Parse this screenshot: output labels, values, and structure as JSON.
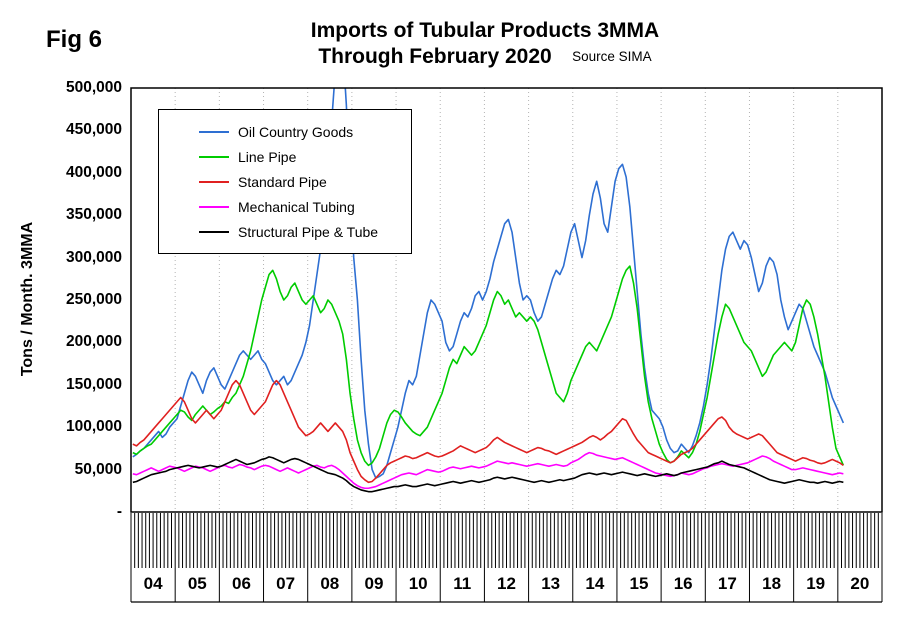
{
  "figure": {
    "fig_label": "Fig 6",
    "title_line1": "Imports of Tubular Products 3MMA",
    "title_line2": "Through February 2020",
    "source": "Source SIMA",
    "y_axis_title": "Tons / Month. 3MMA"
  },
  "chart_data": {
    "type": "line",
    "title": "Imports of Tubular Products 3MMA Through February 2020",
    "source": "Source SIMA",
    "ylabel": "Tons / Month. 3MMA",
    "ylim": [
      0,
      500000
    ],
    "y_tick_step": 50000,
    "y_tick_labels": [
      "-",
      "50,000",
      "100,000",
      "150,000",
      "200,000",
      "250,000",
      "300,000",
      "350,000",
      "400,000",
      "450,000",
      "500,000"
    ],
    "x_start": "2004-01",
    "x_end": "2020-02",
    "x_frequency": "monthly",
    "x_axis_span_years": 17,
    "x_tick_labels": [
      "04",
      "05",
      "06",
      "07",
      "08",
      "09",
      "10",
      "11",
      "12",
      "13",
      "14",
      "15",
      "16",
      "17",
      "18",
      "19",
      "20"
    ],
    "grid": "light dotted vertical gridlines at year boundaries; no horizontal gridlines",
    "legend_position": "upper-left-inside-boxed",
    "values_unit": "tons per month (3MMA), stored in thousands of tons",
    "unit_multiplier": 1000,
    "series": [
      {
        "name": "Oil Country Goods",
        "color": "#2E6FD2",
        "values_thousands": [
          65,
          68,
          72,
          75,
          80,
          85,
          90,
          95,
          88,
          92,
          100,
          105,
          110,
          125,
          140,
          155,
          165,
          160,
          150,
          140,
          155,
          165,
          170,
          160,
          150,
          145,
          155,
          165,
          175,
          185,
          190,
          185,
          180,
          185,
          190,
          180,
          175,
          165,
          155,
          150,
          155,
          160,
          150,
          155,
          165,
          175,
          185,
          200,
          220,
          250,
          280,
          310,
          350,
          400,
          460,
          520,
          560,
          550,
          480,
          380,
          300,
          250,
          180,
          120,
          80,
          50,
          40,
          42,
          45,
          55,
          70,
          85,
          100,
          120,
          140,
          155,
          150,
          160,
          185,
          210,
          235,
          250,
          245,
          235,
          225,
          200,
          190,
          195,
          210,
          225,
          235,
          230,
          240,
          255,
          260,
          250,
          260,
          275,
          295,
          310,
          325,
          340,
          345,
          330,
          300,
          270,
          250,
          255,
          250,
          235,
          225,
          230,
          245,
          260,
          275,
          285,
          280,
          290,
          310,
          330,
          340,
          320,
          300,
          320,
          350,
          375,
          390,
          370,
          340,
          330,
          360,
          390,
          405,
          410,
          395,
          360,
          310,
          260,
          210,
          170,
          140,
          120,
          115,
          110,
          100,
          85,
          75,
          70,
          72,
          80,
          75,
          70,
          78,
          90,
          105,
          125,
          150,
          180,
          215,
          250,
          285,
          310,
          325,
          330,
          320,
          310,
          320,
          315,
          300,
          280,
          260,
          270,
          290,
          300,
          295,
          280,
          250,
          230,
          215,
          225,
          235,
          245,
          240,
          225,
          210,
          195,
          185,
          175,
          165,
          150,
          135,
          125,
          115,
          105
        ]
      },
      {
        "name": "Line Pipe",
        "color": "#00CC00",
        "values_thousands": [
          70,
          68,
          72,
          75,
          78,
          80,
          85,
          90,
          95,
          100,
          105,
          110,
          115,
          120,
          118,
          112,
          108,
          115,
          120,
          125,
          120,
          115,
          118,
          122,
          125,
          130,
          128,
          135,
          140,
          150,
          160,
          175,
          190,
          210,
          230,
          250,
          265,
          280,
          285,
          275,
          260,
          250,
          255,
          265,
          270,
          260,
          250,
          245,
          250,
          255,
          245,
          235,
          240,
          250,
          245,
          235,
          225,
          210,
          180,
          140,
          110,
          85,
          70,
          60,
          55,
          58,
          65,
          75,
          90,
          105,
          115,
          120,
          118,
          112,
          105,
          100,
          95,
          92,
          90,
          95,
          100,
          110,
          120,
          130,
          140,
          155,
          170,
          180,
          175,
          185,
          195,
          190,
          185,
          190,
          200,
          210,
          220,
          235,
          250,
          260,
          255,
          245,
          250,
          240,
          230,
          235,
          230,
          225,
          230,
          225,
          215,
          200,
          185,
          170,
          155,
          140,
          135,
          130,
          140,
          155,
          165,
          175,
          185,
          195,
          200,
          195,
          190,
          200,
          210,
          220,
          230,
          245,
          260,
          275,
          285,
          290,
          270,
          240,
          200,
          160,
          130,
          110,
          95,
          80,
          70,
          62,
          58,
          60,
          65,
          72,
          68,
          64,
          70,
          80,
          95,
          115,
          135,
          160,
          185,
          210,
          230,
          245,
          240,
          230,
          220,
          210,
          200,
          195,
          190,
          180,
          170,
          160,
          165,
          175,
          185,
          190,
          195,
          200,
          195,
          190,
          200,
          220,
          240,
          250,
          245,
          230,
          210,
          185,
          160,
          130,
          100,
          75,
          65,
          55
        ]
      },
      {
        "name": "Standard Pipe",
        "color": "#E02020",
        "values_thousands": [
          80,
          78,
          82,
          85,
          90,
          95,
          100,
          105,
          110,
          115,
          120,
          125,
          130,
          135,
          130,
          120,
          110,
          105,
          110,
          115,
          120,
          115,
          110,
          115,
          120,
          130,
          140,
          150,
          155,
          150,
          140,
          130,
          120,
          115,
          120,
          125,
          130,
          140,
          150,
          155,
          150,
          140,
          130,
          120,
          110,
          100,
          95,
          90,
          92,
          95,
          100,
          105,
          100,
          95,
          100,
          105,
          100,
          95,
          85,
          70,
          60,
          50,
          42,
          38,
          35,
          36,
          40,
          45,
          50,
          55,
          58,
          60,
          62,
          64,
          66,
          65,
          63,
          64,
          66,
          68,
          70,
          68,
          66,
          65,
          66,
          68,
          70,
          72,
          75,
          78,
          76,
          74,
          72,
          70,
          72,
          74,
          76,
          80,
          85,
          88,
          85,
          82,
          80,
          78,
          76,
          74,
          72,
          70,
          72,
          74,
          76,
          75,
          73,
          72,
          70,
          68,
          70,
          72,
          74,
          76,
          78,
          80,
          82,
          85,
          88,
          90,
          88,
          85,
          88,
          92,
          95,
          100,
          105,
          110,
          108,
          100,
          92,
          85,
          80,
          75,
          70,
          68,
          66,
          64,
          62,
          60,
          58,
          60,
          64,
          68,
          70,
          72,
          75,
          80,
          85,
          90,
          95,
          100,
          105,
          110,
          112,
          108,
          100,
          95,
          92,
          90,
          88,
          86,
          88,
          90,
          92,
          90,
          85,
          80,
          75,
          70,
          68,
          66,
          64,
          62,
          60,
          62,
          64,
          63,
          61,
          60,
          58,
          57,
          58,
          60,
          62,
          60,
          58,
          55
        ]
      },
      {
        "name": "Mechanical Tubing",
        "color": "#FF00FF",
        "values_thousands": [
          45,
          44,
          46,
          48,
          50,
          52,
          50,
          48,
          50,
          52,
          54,
          53,
          52,
          50,
          48,
          50,
          52,
          54,
          53,
          52,
          50,
          48,
          50,
          52,
          54,
          55,
          53,
          52,
          54,
          56,
          55,
          53,
          52,
          50,
          52,
          54,
          55,
          54,
          52,
          50,
          48,
          50,
          52,
          50,
          48,
          46,
          48,
          50,
          52,
          54,
          55,
          53,
          52,
          54,
          55,
          53,
          50,
          46,
          42,
          38,
          34,
          31,
          29,
          28,
          28,
          29,
          30,
          32,
          34,
          36,
          38,
          40,
          42,
          44,
          45,
          46,
          45,
          44,
          46,
          48,
          50,
          49,
          48,
          47,
          48,
          50,
          52,
          53,
          52,
          51,
          52,
          53,
          54,
          53,
          52,
          53,
          54,
          56,
          58,
          60,
          59,
          58,
          57,
          58,
          57,
          56,
          55,
          54,
          55,
          56,
          57,
          56,
          55,
          54,
          55,
          56,
          55,
          54,
          55,
          58,
          60,
          62,
          65,
          68,
          70,
          69,
          67,
          66,
          65,
          64,
          63,
          62,
          63,
          64,
          62,
          60,
          58,
          56,
          54,
          52,
          50,
          48,
          46,
          45,
          44,
          43,
          42,
          43,
          44,
          46,
          45,
          44,
          45,
          47,
          49,
          51,
          52,
          54,
          55,
          56,
          57,
          56,
          55,
          54,
          55,
          56,
          57,
          58,
          60,
          62,
          64,
          66,
          65,
          63,
          60,
          58,
          56,
          54,
          52,
          50,
          50,
          51,
          52,
          51,
          50,
          49,
          48,
          47,
          46,
          45,
          44,
          45,
          46,
          45
        ]
      },
      {
        "name": "Structural Pipe & Tube",
        "color": "#000000",
        "values_thousands": [
          35,
          36,
          38,
          40,
          42,
          44,
          45,
          46,
          47,
          48,
          50,
          51,
          52,
          53,
          54,
          55,
          54,
          53,
          52,
          53,
          54,
          55,
          54,
          53,
          54,
          56,
          58,
          60,
          62,
          60,
          58,
          56,
          57,
          58,
          60,
          62,
          63,
          65,
          64,
          62,
          60,
          58,
          60,
          62,
          63,
          62,
          60,
          58,
          56,
          54,
          52,
          50,
          48,
          46,
          45,
          44,
          42,
          40,
          37,
          33,
          30,
          28,
          26,
          25,
          24,
          24,
          25,
          26,
          27,
          28,
          29,
          30,
          30,
          31,
          32,
          31,
          30,
          30,
          31,
          32,
          33,
          32,
          31,
          32,
          33,
          34,
          35,
          36,
          35,
          34,
          35,
          36,
          37,
          36,
          35,
          36,
          37,
          38,
          40,
          41,
          40,
          39,
          40,
          41,
          40,
          39,
          38,
          37,
          36,
          35,
          36,
          37,
          36,
          35,
          36,
          37,
          38,
          37,
          38,
          39,
          40,
          42,
          44,
          45,
          46,
          45,
          44,
          45,
          46,
          45,
          44,
          45,
          46,
          47,
          46,
          45,
          44,
          43,
          44,
          45,
          44,
          43,
          42,
          43,
          44,
          45,
          44,
          43,
          44,
          46,
          47,
          48,
          49,
          50,
          51,
          52,
          53,
          55,
          57,
          58,
          60,
          58,
          56,
          55,
          54,
          53,
          52,
          50,
          48,
          46,
          44,
          42,
          40,
          38,
          37,
          36,
          35,
          34,
          35,
          36,
          37,
          38,
          37,
          36,
          35,
          35,
          34,
          35,
          36,
          35,
          34,
          35,
          36,
          35
        ]
      }
    ]
  }
}
